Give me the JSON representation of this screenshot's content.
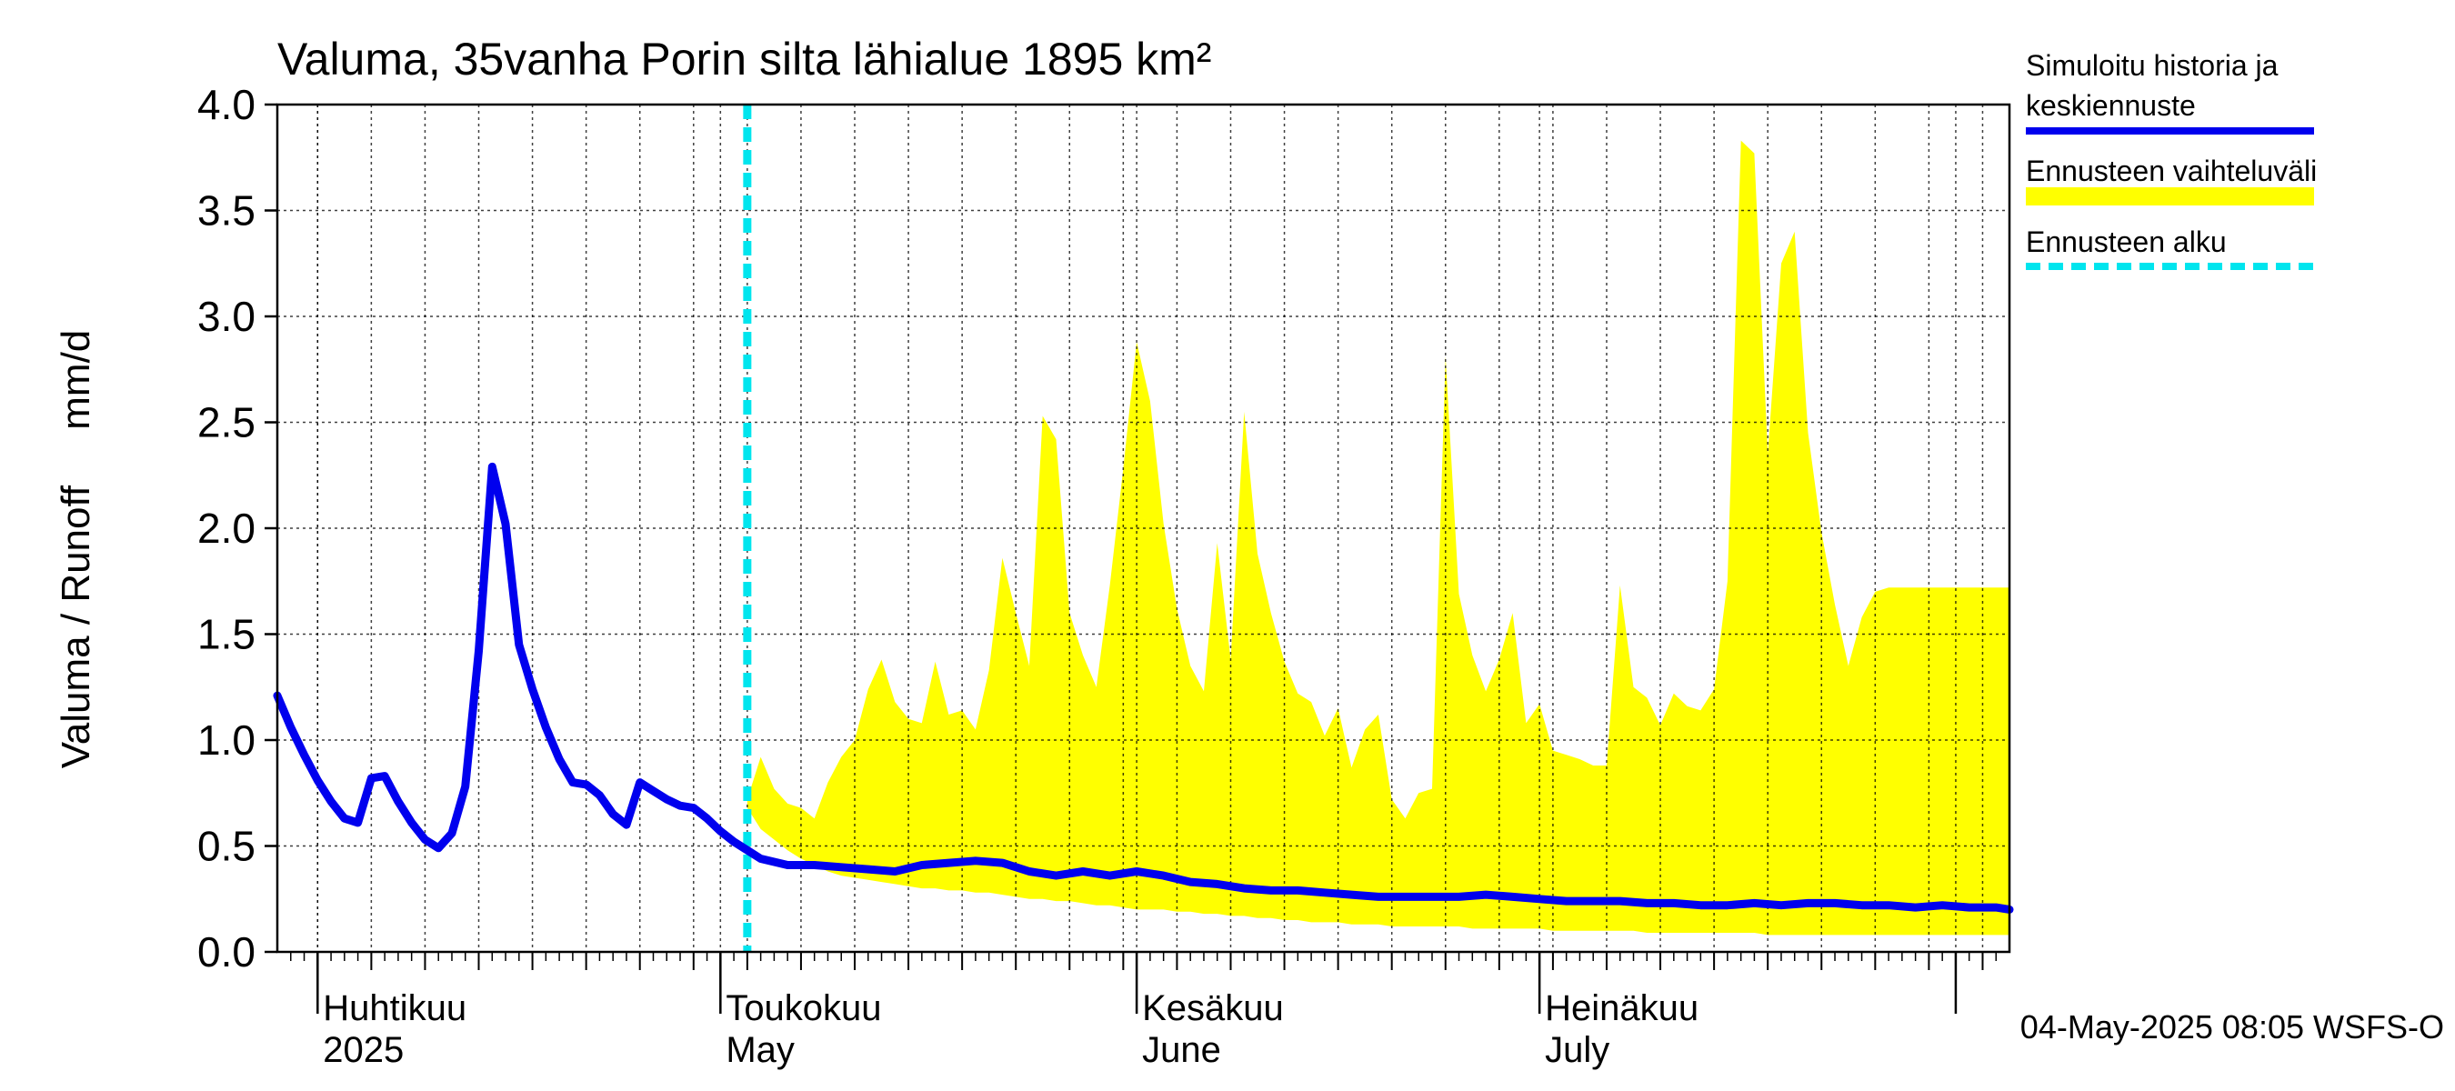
{
  "chart_data": {
    "type": "area",
    "title": "Valuma, 35vanha Porin silta lähialue 1895 km²",
    "ylabel": "Valuma / Runoff     mm/d",
    "ylim": [
      0,
      4
    ],
    "yticks": [
      "0.0",
      "0.5",
      "1.0",
      "1.5",
      "2.0",
      "2.5",
      "3.0",
      "3.5",
      "4.0"
    ],
    "xlim": [
      "2025-03-29",
      "2025-08-05"
    ],
    "grid": true,
    "month_labels": [
      {
        "date": "2025-04-01",
        "line1": "Huhtikuu",
        "line2": "2025"
      },
      {
        "date": "2025-05-01",
        "line1": "Toukokuu",
        "line2": "May"
      },
      {
        "date": "2025-06-01",
        "line1": "Kesäkuu",
        "line2": "June"
      },
      {
        "date": "2025-07-01",
        "line1": "Heinäkuu",
        "line2": "July"
      }
    ],
    "forecast_start": "2025-05-03",
    "legend": {
      "placement": "right",
      "items": [
        {
          "label": "Simuloitu historia ja keskiennuste",
          "lines": [
            "Simuloitu historia ja",
            "keskiennuste"
          ],
          "color": "#0000ee",
          "style": "solid"
        },
        {
          "label": "Ennusteen vaihteluväli",
          "lines": [
            "Ennusteen vaihteluväli"
          ],
          "color": "#ffff00",
          "style": "band"
        },
        {
          "label": "Ennusteen alku",
          "lines": [
            "Ennusteen alku"
          ],
          "color": "#00e5ee",
          "style": "dashed"
        }
      ]
    },
    "timestamp": "04-May-2025 08:05 WSFS-O",
    "series": [
      {
        "name": "Simuloitu historia ja keskiennuste",
        "color": "#0000ee",
        "x": [
          "2025-03-29",
          "2025-03-30",
          "2025-03-31",
          "2025-04-01",
          "2025-04-02",
          "2025-04-03",
          "2025-04-04",
          "2025-04-05",
          "2025-04-06",
          "2025-04-07",
          "2025-04-08",
          "2025-04-09",
          "2025-04-10",
          "2025-04-11",
          "2025-04-12",
          "2025-04-13",
          "2025-04-14",
          "2025-04-15",
          "2025-04-16",
          "2025-04-17",
          "2025-04-18",
          "2025-04-19",
          "2025-04-20",
          "2025-04-21",
          "2025-04-22",
          "2025-04-23",
          "2025-04-24",
          "2025-04-25",
          "2025-04-26",
          "2025-04-27",
          "2025-04-28",
          "2025-04-29",
          "2025-04-30",
          "2025-05-01",
          "2025-05-02",
          "2025-05-03",
          "2025-05-04",
          "2025-05-06",
          "2025-05-08",
          "2025-05-10",
          "2025-05-12",
          "2025-05-14",
          "2025-05-16",
          "2025-05-18",
          "2025-05-20",
          "2025-05-22",
          "2025-05-24",
          "2025-05-26",
          "2025-05-28",
          "2025-05-30",
          "2025-06-01",
          "2025-06-03",
          "2025-06-05",
          "2025-06-07",
          "2025-06-09",
          "2025-06-11",
          "2025-06-13",
          "2025-06-15",
          "2025-06-17",
          "2025-06-19",
          "2025-06-21",
          "2025-06-23",
          "2025-06-25",
          "2025-06-27",
          "2025-06-29",
          "2025-07-01",
          "2025-07-03",
          "2025-07-05",
          "2025-07-07",
          "2025-07-09",
          "2025-07-11",
          "2025-07-13",
          "2025-07-15",
          "2025-07-17",
          "2025-07-19",
          "2025-07-21",
          "2025-07-23",
          "2025-07-25",
          "2025-07-27",
          "2025-07-29",
          "2025-07-31",
          "2025-08-02",
          "2025-08-04",
          "2025-08-05"
        ],
        "y": [
          1.21,
          1.06,
          0.93,
          0.81,
          0.71,
          0.63,
          0.61,
          0.82,
          0.83,
          0.71,
          0.61,
          0.53,
          0.49,
          0.56,
          0.78,
          1.42,
          2.29,
          2.02,
          1.45,
          1.24,
          1.06,
          0.91,
          0.8,
          0.79,
          0.74,
          0.65,
          0.6,
          0.8,
          0.76,
          0.72,
          0.69,
          0.68,
          0.63,
          0.57,
          0.52,
          0.48,
          0.44,
          0.41,
          0.41,
          0.4,
          0.39,
          0.38,
          0.41,
          0.42,
          0.43,
          0.42,
          0.38,
          0.36,
          0.38,
          0.36,
          0.38,
          0.36,
          0.33,
          0.32,
          0.3,
          0.29,
          0.29,
          0.28,
          0.27,
          0.26,
          0.26,
          0.26,
          0.26,
          0.27,
          0.26,
          0.25,
          0.24,
          0.24,
          0.24,
          0.23,
          0.23,
          0.22,
          0.22,
          0.23,
          0.22,
          0.23,
          0.23,
          0.22,
          0.22,
          0.21,
          0.22,
          0.21,
          0.21,
          0.2
        ]
      },
      {
        "name": "Ennusteen vaihteluväli",
        "color": "#ffff00",
        "x": [
          "2025-05-03",
          "2025-05-04",
          "2025-05-05",
          "2025-05-06",
          "2025-05-07",
          "2025-05-08",
          "2025-05-09",
          "2025-05-10",
          "2025-05-11",
          "2025-05-12",
          "2025-05-13",
          "2025-05-14",
          "2025-05-15",
          "2025-05-16",
          "2025-05-17",
          "2025-05-18",
          "2025-05-19",
          "2025-05-20",
          "2025-05-21",
          "2025-05-22",
          "2025-05-23",
          "2025-05-24",
          "2025-05-25",
          "2025-05-26",
          "2025-05-27",
          "2025-05-28",
          "2025-05-29",
          "2025-05-30",
          "2025-05-31",
          "2025-06-01",
          "2025-06-02",
          "2025-06-03",
          "2025-06-04",
          "2025-06-05",
          "2025-06-06",
          "2025-06-07",
          "2025-06-08",
          "2025-06-09",
          "2025-06-10",
          "2025-06-11",
          "2025-06-12",
          "2025-06-13",
          "2025-06-14",
          "2025-06-15",
          "2025-06-16",
          "2025-06-17",
          "2025-06-18",
          "2025-06-19",
          "2025-06-20",
          "2025-06-21",
          "2025-06-22",
          "2025-06-23",
          "2025-06-24",
          "2025-06-25",
          "2025-06-26",
          "2025-06-27",
          "2025-06-28",
          "2025-06-29",
          "2025-06-30",
          "2025-07-01",
          "2025-07-02",
          "2025-07-03",
          "2025-07-04",
          "2025-07-05",
          "2025-07-06",
          "2025-07-07",
          "2025-07-08",
          "2025-07-09",
          "2025-07-10",
          "2025-07-11",
          "2025-07-12",
          "2025-07-13",
          "2025-07-14",
          "2025-07-15",
          "2025-07-16",
          "2025-07-17",
          "2025-07-18",
          "2025-07-19",
          "2025-07-20",
          "2025-07-21",
          "2025-07-22",
          "2025-07-23",
          "2025-07-24",
          "2025-07-25",
          "2025-07-26",
          "2025-07-27",
          "2025-07-28",
          "2025-07-29",
          "2025-07-30",
          "2025-07-31",
          "2025-08-01",
          "2025-08-02",
          "2025-08-03",
          "2025-08-04",
          "2025-08-05"
        ],
        "upper": [
          0.72,
          0.92,
          0.77,
          0.7,
          0.68,
          0.63,
          0.8,
          0.92,
          1.0,
          1.24,
          1.38,
          1.18,
          1.1,
          1.08,
          1.37,
          1.12,
          1.14,
          1.05,
          1.33,
          1.86,
          1.6,
          1.35,
          2.53,
          2.42,
          1.6,
          1.4,
          1.25,
          1.73,
          2.28,
          2.88,
          2.6,
          2.02,
          1.62,
          1.35,
          1.23,
          1.93,
          1.38,
          2.55,
          1.88,
          1.6,
          1.37,
          1.22,
          1.18,
          1.02,
          1.15,
          0.87,
          1.05,
          1.12,
          0.72,
          0.63,
          0.75,
          0.77,
          2.81,
          1.69,
          1.4,
          1.23,
          1.38,
          1.6,
          1.08,
          1.17,
          0.95,
          0.93,
          0.91,
          0.88,
          0.88,
          1.73,
          1.25,
          1.2,
          1.07,
          1.22,
          1.16,
          1.14,
          1.24,
          1.75,
          3.83,
          3.77,
          2.35,
          3.25,
          3.4,
          2.45,
          1.98,
          1.64,
          1.35,
          1.58,
          1.7,
          1.72,
          1.72,
          1.72,
          1.72,
          1.72,
          1.72,
          1.72,
          1.72,
          1.72,
          1.72
        ],
        "lower": [
          0.68,
          0.58,
          0.53,
          0.48,
          0.44,
          0.41,
          0.38,
          0.36,
          0.35,
          0.34,
          0.33,
          0.32,
          0.31,
          0.3,
          0.3,
          0.29,
          0.29,
          0.28,
          0.28,
          0.27,
          0.26,
          0.25,
          0.25,
          0.24,
          0.24,
          0.23,
          0.22,
          0.22,
          0.21,
          0.2,
          0.2,
          0.2,
          0.19,
          0.19,
          0.18,
          0.18,
          0.17,
          0.17,
          0.16,
          0.16,
          0.15,
          0.15,
          0.14,
          0.14,
          0.14,
          0.13,
          0.13,
          0.13,
          0.12,
          0.12,
          0.12,
          0.12,
          0.12,
          0.12,
          0.11,
          0.11,
          0.11,
          0.11,
          0.11,
          0.11,
          0.1,
          0.1,
          0.1,
          0.1,
          0.1,
          0.1,
          0.1,
          0.09,
          0.09,
          0.09,
          0.09,
          0.09,
          0.09,
          0.09,
          0.09,
          0.09,
          0.08,
          0.08,
          0.08,
          0.08,
          0.08,
          0.08,
          0.08,
          0.08,
          0.08,
          0.08,
          0.08,
          0.08,
          0.08,
          0.08,
          0.08,
          0.08,
          0.08,
          0.08,
          0.08
        ]
      }
    ]
  }
}
